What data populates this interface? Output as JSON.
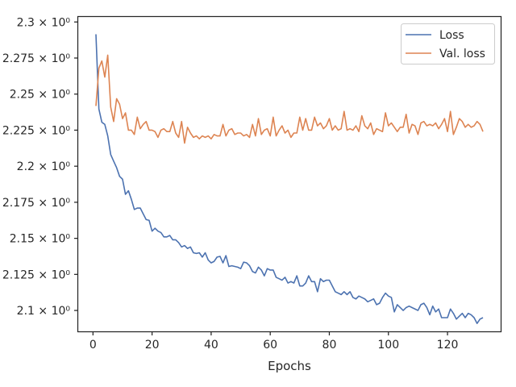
{
  "chart_data": {
    "type": "line",
    "xlabel": "Epochs",
    "ylabel": "",
    "xlim": [
      -5,
      138
    ],
    "ylim": [
      2.0855,
      2.3035
    ],
    "xticks": [
      0,
      20,
      40,
      60,
      80,
      100,
      120
    ],
    "xtick_labels": [
      "0",
      "20",
      "40",
      "60",
      "80",
      "100",
      "120"
    ],
    "yticks": [
      2.1,
      2.125,
      2.15,
      2.175,
      2.2,
      2.225,
      2.25,
      2.275,
      2.3
    ],
    "ytick_labels": [
      "2.1 × 10⁰",
      "2.125 × 10⁰",
      "2.15 × 10⁰",
      "2.175 × 10⁰",
      "2.2 × 10⁰",
      "2.225 × 10⁰",
      "2.25 × 10⁰",
      "2.275 × 10⁰",
      "2.3 × 10⁰"
    ],
    "grid": false,
    "legend_position": "top-right",
    "series": [
      {
        "name": "Loss",
        "color": "#4c72b0",
        "x": [
          1,
          2,
          3,
          4,
          5,
          6,
          7,
          8,
          9,
          10,
          11,
          12,
          13,
          14,
          15,
          16,
          17,
          18,
          19,
          20,
          21,
          22,
          23,
          24,
          25,
          26,
          27,
          28,
          29,
          30,
          31,
          32,
          33,
          34,
          35,
          36,
          37,
          38,
          39,
          40,
          41,
          42,
          43,
          44,
          45,
          46,
          47,
          48,
          49,
          50,
          51,
          52,
          53,
          54,
          55,
          56,
          57,
          58,
          59,
          60,
          61,
          62,
          63,
          64,
          65,
          66,
          67,
          68,
          69,
          70,
          71,
          72,
          73,
          74,
          75,
          76,
          77,
          78,
          79,
          80,
          81,
          82,
          83,
          84,
          85,
          86,
          87,
          88,
          89,
          90,
          91,
          92,
          93,
          94,
          95,
          96,
          97,
          98,
          99,
          100,
          101,
          102,
          103,
          104,
          105,
          106,
          107,
          108,
          109,
          110,
          111,
          112,
          113,
          114,
          115,
          116,
          117,
          118,
          119,
          120,
          121,
          122,
          123,
          124,
          125,
          126,
          127,
          128,
          129,
          130,
          131,
          132
        ],
        "y": [
          2.2915,
          2.2397,
          2.2305,
          2.229,
          2.221,
          2.2081,
          2.2035,
          2.199,
          2.193,
          2.191,
          2.1805,
          2.183,
          2.177,
          2.17,
          2.171,
          2.171,
          2.167,
          2.163,
          2.1625,
          2.155,
          2.157,
          2.155,
          2.154,
          2.151,
          2.151,
          2.152,
          2.149,
          2.149,
          2.147,
          2.144,
          2.145,
          2.143,
          2.144,
          2.14,
          2.1395,
          2.14,
          2.137,
          2.14,
          2.135,
          2.133,
          2.134,
          2.137,
          2.1375,
          2.133,
          2.138,
          2.1305,
          2.131,
          2.1305,
          2.13,
          2.129,
          2.1335,
          2.133,
          2.131,
          2.127,
          2.126,
          2.13,
          2.128,
          2.124,
          2.129,
          2.128,
          2.128,
          2.123,
          2.122,
          2.121,
          2.123,
          2.119,
          2.12,
          2.119,
          2.124,
          2.117,
          2.117,
          2.119,
          2.124,
          2.12,
          2.12,
          2.113,
          2.122,
          2.12,
          2.121,
          2.121,
          2.117,
          2.113,
          2.112,
          2.111,
          2.113,
          2.111,
          2.113,
          2.109,
          2.108,
          2.11,
          2.109,
          2.108,
          2.106,
          2.107,
          2.108,
          2.104,
          2.105,
          2.109,
          2.112,
          2.11,
          2.109,
          2.099,
          2.104,
          2.102,
          2.1,
          2.102,
          2.103,
          2.102,
          2.101,
          2.1,
          2.104,
          2.105,
          2.102,
          2.097,
          2.103,
          2.099,
          2.101,
          2.095,
          2.095,
          2.095,
          2.101,
          2.098,
          2.094,
          2.096,
          2.098,
          2.095,
          2.098,
          2.097,
          2.095,
          2.091,
          2.094,
          2.095
        ]
      },
      {
        "name": "Val. loss",
        "color": "#dd8452",
        "x": [
          1,
          2,
          3,
          4,
          5,
          6,
          7,
          8,
          9,
          10,
          11,
          12,
          13,
          14,
          15,
          16,
          17,
          18,
          19,
          20,
          21,
          22,
          23,
          24,
          25,
          26,
          27,
          28,
          29,
          30,
          31,
          32,
          33,
          34,
          35,
          36,
          37,
          38,
          39,
          40,
          41,
          42,
          43,
          44,
          45,
          46,
          47,
          48,
          49,
          50,
          51,
          52,
          53,
          54,
          55,
          56,
          57,
          58,
          59,
          60,
          61,
          62,
          63,
          64,
          65,
          66,
          67,
          68,
          69,
          70,
          71,
          72,
          73,
          74,
          75,
          76,
          77,
          78,
          79,
          80,
          81,
          82,
          83,
          84,
          85,
          86,
          87,
          88,
          89,
          90,
          91,
          92,
          93,
          94,
          95,
          96,
          97,
          98,
          99,
          100,
          101,
          102,
          103,
          104,
          105,
          106,
          107,
          108,
          109,
          110,
          111,
          112,
          113,
          114,
          115,
          116,
          117,
          118,
          119,
          120,
          121,
          122,
          123,
          124,
          125,
          126,
          127,
          128,
          129,
          130,
          131,
          132
        ],
        "y": [
          2.2418,
          2.268,
          2.273,
          2.2618,
          2.277,
          2.241,
          2.231,
          2.2468,
          2.243,
          2.233,
          2.237,
          2.225,
          2.225,
          2.222,
          2.234,
          2.226,
          2.229,
          2.231,
          2.225,
          2.225,
          2.224,
          2.22,
          2.225,
          2.226,
          2.224,
          2.224,
          2.231,
          2.223,
          2.22,
          2.231,
          2.216,
          2.227,
          2.223,
          2.22,
          2.221,
          2.219,
          2.221,
          2.22,
          2.221,
          2.219,
          2.222,
          2.221,
          2.221,
          2.229,
          2.221,
          2.225,
          2.226,
          2.222,
          2.223,
          2.223,
          2.221,
          2.222,
          2.22,
          2.229,
          2.221,
          2.233,
          2.222,
          2.225,
          2.226,
          2.221,
          2.234,
          2.221,
          2.225,
          2.228,
          2.223,
          2.225,
          2.22,
          2.223,
          2.223,
          2.234,
          2.225,
          2.233,
          2.225,
          2.225,
          2.234,
          2.228,
          2.23,
          2.226,
          2.228,
          2.233,
          2.225,
          2.228,
          2.225,
          2.226,
          2.238,
          2.225,
          2.226,
          2.225,
          2.228,
          2.224,
          2.235,
          2.228,
          2.226,
          2.23,
          2.222,
          2.226,
          2.225,
          2.224,
          2.237,
          2.228,
          2.23,
          2.227,
          2.224,
          2.227,
          2.227,
          2.236,
          2.223,
          2.229,
          2.228,
          2.222,
          2.23,
          2.231,
          2.228,
          2.229,
          2.228,
          2.23,
          2.226,
          2.229,
          2.233,
          2.224,
          2.238,
          2.222,
          2.227,
          2.233,
          2.231,
          2.227,
          2.229,
          2.227,
          2.228,
          2.231,
          2.229,
          2.224
        ]
      }
    ]
  }
}
